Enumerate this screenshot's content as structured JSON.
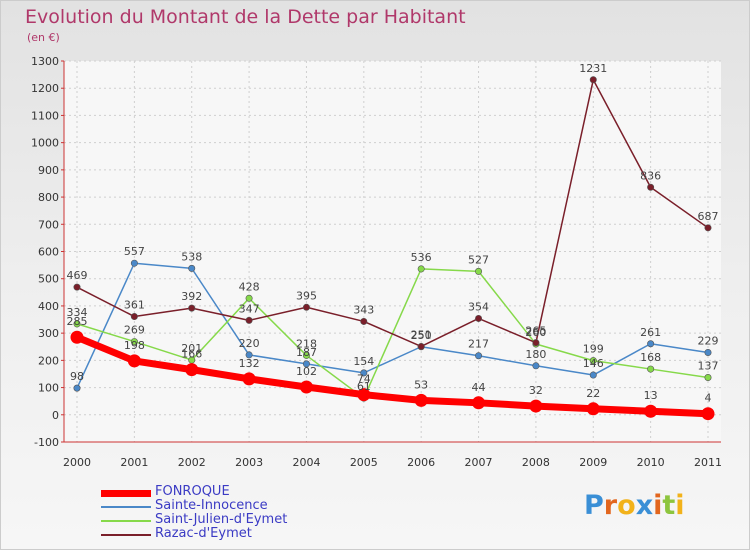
{
  "header": {
    "title": "Evolution du Montant de la Dette par Habitant",
    "unit": "(en €)"
  },
  "logo": {
    "text": "Proxiti",
    "letter_colors": [
      "#3a8fd6",
      "#e2661e",
      "#f2b21a",
      "#3a8fd6",
      "#e2661e",
      "#8dc53e",
      "#f2b21a"
    ]
  },
  "chart_data": {
    "type": "line",
    "title": "Evolution du Montant de la Dette par Habitant",
    "ylabel": "(en €)",
    "xlabel": "",
    "categories": [
      "2000",
      "2001",
      "2002",
      "2003",
      "2004",
      "2005",
      "2006",
      "2007",
      "2008",
      "2009",
      "2010",
      "2011"
    ],
    "ylim": [
      -100,
      1300
    ],
    "ytick_step": 100,
    "grid": true,
    "legend_position": "bottom-left",
    "series": [
      {
        "name": "FONROQUE",
        "values": [
          285,
          198,
          166,
          132,
          102,
          74,
          53,
          44,
          32,
          22,
          13,
          4
        ],
        "labels": [
          "285",
          "198",
          "166",
          "132",
          "102",
          "74",
          "53",
          "44",
          "32",
          "22",
          "13",
          "4"
        ],
        "color": "#ff0000",
        "bold": true
      },
      {
        "name": "Sainte-Innocence",
        "values": [
          98,
          557,
          538,
          220,
          187,
          154,
          250,
          217,
          180,
          146,
          261,
          229
        ],
        "labels": [
          "98",
          "557",
          "538",
          "220",
          "187",
          "154",
          "250",
          "217",
          "180",
          "146",
          "261",
          "229"
        ],
        "color": "#4a88c8",
        "bold": false
      },
      {
        "name": "Saint-Julien-d'Eymet",
        "values": [
          334,
          269,
          201,
          428,
          218,
          61,
          536,
          527,
          260,
          199,
          168,
          137
        ],
        "labels": [
          "334",
          "269",
          "201",
          "428",
          "218",
          "61",
          "536",
          "527",
          "260",
          "199",
          "168",
          "137"
        ],
        "color": "#86d94a",
        "bold": false
      },
      {
        "name": "Razac-d'Eymet",
        "values": [
          469,
          361,
          392,
          347,
          395,
          343,
          251,
          354,
          265,
          1231,
          836,
          687
        ],
        "labels": [
          "469",
          "361",
          "392",
          "347",
          "395",
          "343",
          "251",
          "354",
          "265",
          "1231",
          "836",
          "687"
        ],
        "color": "#7a1f2a",
        "bold": false
      }
    ]
  }
}
